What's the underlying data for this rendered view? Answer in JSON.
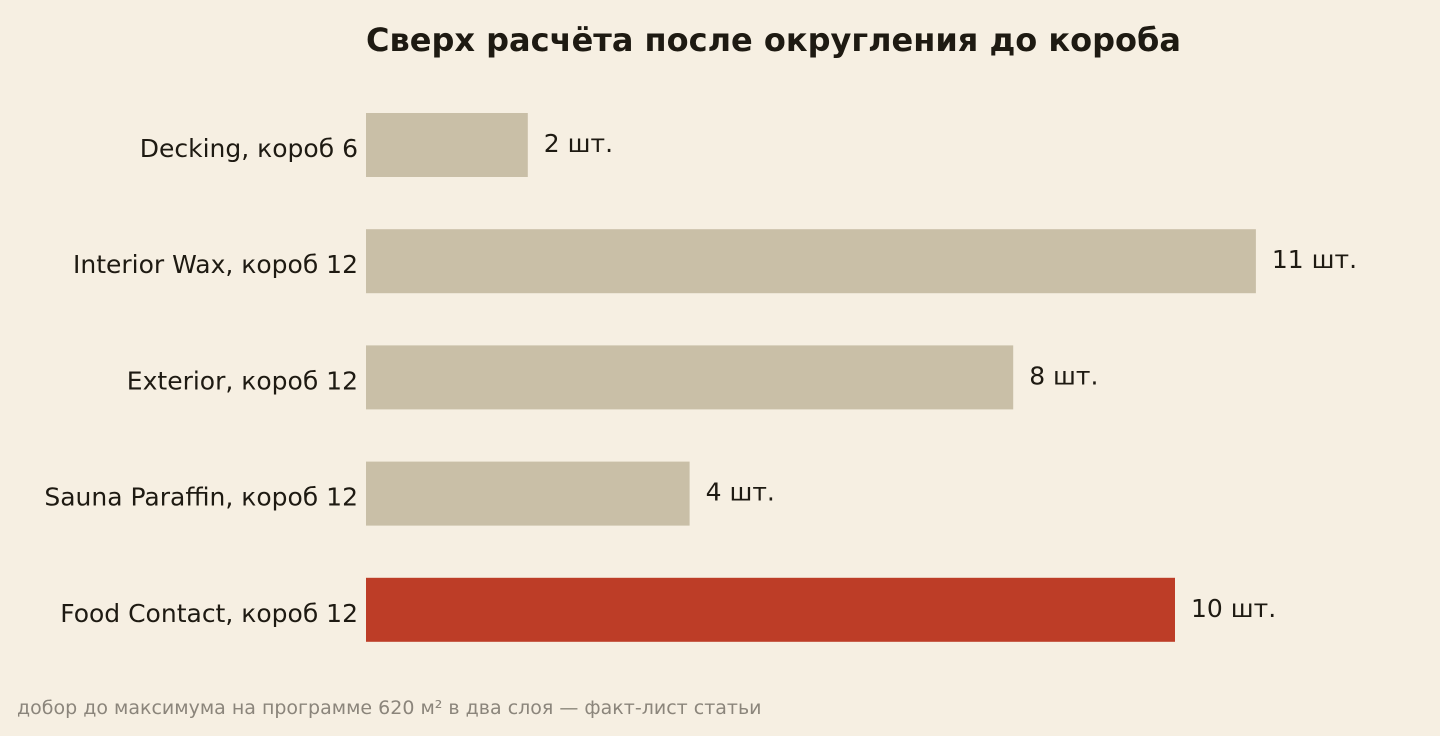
{
  "chart_data": {
    "type": "bar",
    "orientation": "horizontal",
    "title": "Сверх расчёта после округления до короба",
    "categories": [
      "Decking, короб 6",
      "Interior Wax, короб 12",
      "Exterior, короб 12",
      "Sauna Paraffin, короб 12",
      "Food Contact, короб 12"
    ],
    "values": [
      2,
      11,
      8,
      4,
      10
    ],
    "value_labels": [
      "2 шт.",
      "11 шт.",
      "8 шт.",
      "4 шт.",
      "10 шт."
    ],
    "highlight_index": 4,
    "xlim": [
      0,
      11
    ],
    "grid": false,
    "legend": "none",
    "footnote": "добор до максимума на программе 620 м² в два слоя — факт-лист статьи",
    "colors": {
      "bar": "#c9bfa7",
      "highlight": "#bd3d27",
      "background": "#f6efe2",
      "text": "#1e1a12",
      "muted": "#8b857b"
    }
  }
}
